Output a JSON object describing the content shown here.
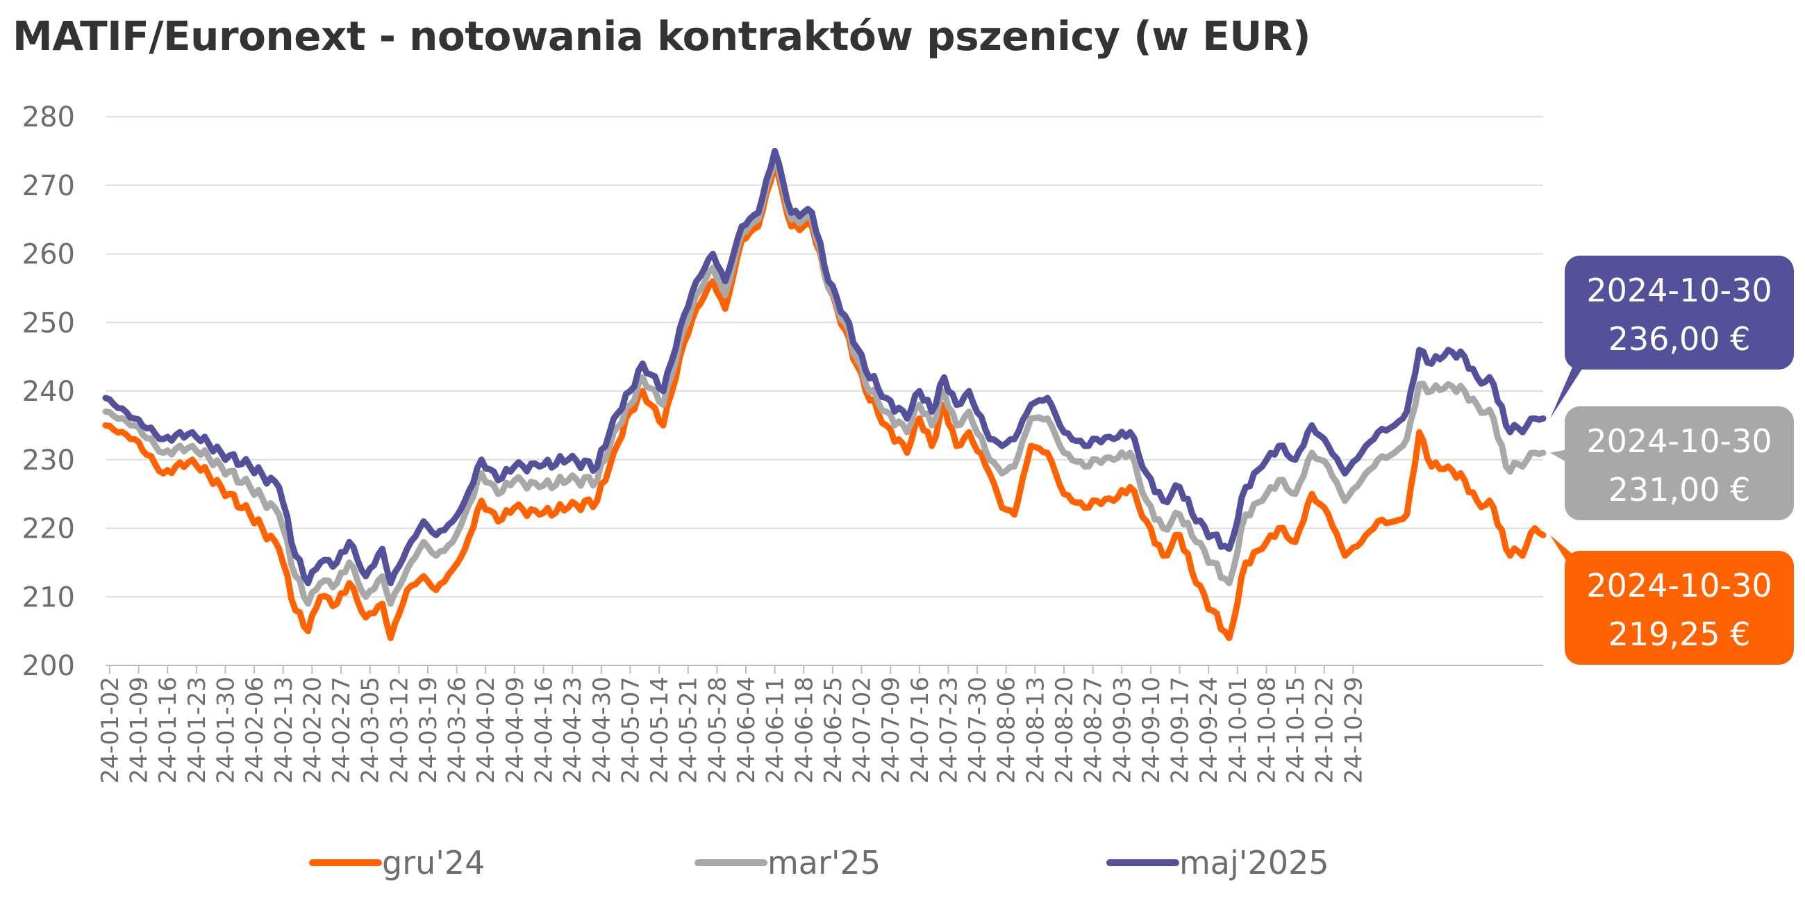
{
  "chart_data": {
    "type": "line",
    "title": "MATIF/Euronext - notowania kontraktów pszenicy (w EUR)",
    "xlabel": "",
    "ylabel": "",
    "ylim": [
      200,
      280
    ],
    "yticks": [
      "200",
      "210",
      "220",
      "230",
      "240",
      "250",
      "260",
      "270",
      "280"
    ],
    "x_start": "2024-01-02",
    "x_end": "2024-10-30",
    "xtick_labels": [
      "24-01-02",
      "24-01-09",
      "24-01-16",
      "24-01-23",
      "24-01-30",
      "24-02-06",
      "24-02-13",
      "24-02-20",
      "24-02-27",
      "24-03-05",
      "24-03-12",
      "24-03-19",
      "24-03-26",
      "24-04-02",
      "24-04-09",
      "24-04-16",
      "24-04-23",
      "24-04-30",
      "24-05-07",
      "24-05-14",
      "24-05-21",
      "24-05-28",
      "24-06-04",
      "24-06-11",
      "24-06-18",
      "24-06-25",
      "24-07-02",
      "24-07-09",
      "24-07-16",
      "24-07-23",
      "24-07-30",
      "24-08-06",
      "24-08-13",
      "24-08-20",
      "24-08-27",
      "24-09-03",
      "24-09-10",
      "24-09-17",
      "24-09-24",
      "24-10-01",
      "24-10-08",
      "24-10-15",
      "24-10-22",
      "24-10-29"
    ],
    "grid": true,
    "legend_position": "bottom",
    "series": [
      {
        "name": "gru'24",
        "color": "#ff6200",
        "values": [
          [
            0,
            235
          ],
          [
            7,
            233
          ],
          [
            14,
            228
          ],
          [
            21,
            230
          ],
          [
            28,
            226
          ],
          [
            35,
            222
          ],
          [
            42,
            217
          ],
          [
            46,
            208
          ],
          [
            49,
            205
          ],
          [
            52,
            210
          ],
          [
            56,
            209
          ],
          [
            59,
            212
          ],
          [
            63,
            207
          ],
          [
            67,
            209
          ],
          [
            69,
            204
          ],
          [
            73,
            211
          ],
          [
            77,
            213
          ],
          [
            80,
            211
          ],
          [
            84,
            214
          ],
          [
            87,
            217
          ],
          [
            91,
            224
          ],
          [
            95,
            221
          ],
          [
            99,
            223
          ],
          [
            105,
            222
          ],
          [
            112,
            223
          ],
          [
            119,
            224
          ],
          [
            123,
            231
          ],
          [
            127,
            237
          ],
          [
            130,
            240
          ],
          [
            135,
            235
          ],
          [
            140,
            247
          ],
          [
            143,
            252
          ],
          [
            147,
            256
          ],
          [
            150,
            252
          ],
          [
            154,
            262
          ],
          [
            158,
            264
          ],
          [
            162,
            273
          ],
          [
            166,
            264
          ],
          [
            171,
            264
          ],
          [
            175,
            255
          ],
          [
            179,
            249
          ],
          [
            184,
            240
          ],
          [
            189,
            235
          ],
          [
            194,
            231
          ],
          [
            197,
            236
          ],
          [
            200,
            232
          ],
          [
            203,
            238
          ],
          [
            206,
            232
          ],
          [
            209,
            234
          ],
          [
            214,
            228
          ],
          [
            217,
            223
          ],
          [
            220,
            222
          ],
          [
            224,
            232
          ],
          [
            228,
            231
          ],
          [
            232,
            225
          ],
          [
            237,
            223
          ],
          [
            240,
            224
          ],
          [
            244,
            224
          ],
          [
            248,
            226
          ],
          [
            252,
            221
          ],
          [
            256,
            216
          ],
          [
            260,
            219
          ],
          [
            264,
            212
          ],
          [
            268,
            208
          ],
          [
            272,
            204
          ],
          [
            276,
            215
          ],
          [
            280,
            217
          ],
          [
            284,
            220
          ],
          [
            288,
            218
          ],
          [
            292,
            225
          ],
          [
            296,
            222
          ],
          [
            300,
            216
          ],
          [
            304,
            218
          ],
          [
            308,
            221
          ],
          [
            312,
            221
          ],
          [
            315,
            222
          ],
          [
            318,
            234
          ],
          [
            321,
            229
          ],
          [
            325,
            229
          ],
          [
            329,
            227
          ],
          [
            332,
            224
          ],
          [
            336,
            223
          ],
          [
            339,
            217
          ],
          [
            343,
            216
          ],
          [
            346,
            220
          ],
          [
            348,
            219
          ]
        ]
      },
      {
        "name": "mar'25",
        "color": "#a8a8a8",
        "values": [
          [
            0,
            237
          ],
          [
            7,
            235
          ],
          [
            14,
            231
          ],
          [
            21,
            232
          ],
          [
            28,
            229
          ],
          [
            35,
            226
          ],
          [
            42,
            222
          ],
          [
            46,
            213
          ],
          [
            49,
            209
          ],
          [
            52,
            212
          ],
          [
            56,
            212
          ],
          [
            59,
            215
          ],
          [
            63,
            210
          ],
          [
            67,
            213
          ],
          [
            69,
            209
          ],
          [
            73,
            214
          ],
          [
            77,
            218
          ],
          [
            80,
            216
          ],
          [
            84,
            218
          ],
          [
            87,
            222
          ],
          [
            91,
            228
          ],
          [
            95,
            225
          ],
          [
            99,
            227
          ],
          [
            105,
            226
          ],
          [
            112,
            227
          ],
          [
            119,
            227
          ],
          [
            123,
            234
          ],
          [
            127,
            238
          ],
          [
            130,
            242
          ],
          [
            135,
            238
          ],
          [
            140,
            249
          ],
          [
            143,
            254
          ],
          [
            147,
            258
          ],
          [
            150,
            254
          ],
          [
            154,
            263
          ],
          [
            158,
            265
          ],
          [
            162,
            274
          ],
          [
            166,
            265
          ],
          [
            171,
            265
          ],
          [
            175,
            255
          ],
          [
            179,
            250
          ],
          [
            184,
            241
          ],
          [
            189,
            237
          ],
          [
            194,
            234
          ],
          [
            197,
            238
          ],
          [
            200,
            235
          ],
          [
            203,
            240
          ],
          [
            206,
            235
          ],
          [
            209,
            237
          ],
          [
            214,
            230
          ],
          [
            217,
            228
          ],
          [
            220,
            229
          ],
          [
            224,
            236
          ],
          [
            228,
            236
          ],
          [
            232,
            231
          ],
          [
            237,
            229
          ],
          [
            240,
            230
          ],
          [
            244,
            230
          ],
          [
            248,
            231
          ],
          [
            252,
            224
          ],
          [
            256,
            220
          ],
          [
            260,
            222
          ],
          [
            264,
            218
          ],
          [
            268,
            215
          ],
          [
            272,
            212
          ],
          [
            276,
            222
          ],
          [
            280,
            224
          ],
          [
            284,
            227
          ],
          [
            288,
            225
          ],
          [
            292,
            231
          ],
          [
            296,
            229
          ],
          [
            300,
            224
          ],
          [
            304,
            227
          ],
          [
            308,
            230
          ],
          [
            312,
            231
          ],
          [
            315,
            233
          ],
          [
            318,
            241
          ],
          [
            321,
            240
          ],
          [
            325,
            241
          ],
          [
            329,
            240
          ],
          [
            332,
            238
          ],
          [
            336,
            236
          ],
          [
            339,
            229
          ],
          [
            343,
            229
          ],
          [
            346,
            231
          ],
          [
            348,
            231
          ]
        ]
      },
      {
        "name": "maj'2025",
        "color": "#525199",
        "values": [
          [
            0,
            239
          ],
          [
            7,
            236
          ],
          [
            14,
            233
          ],
          [
            21,
            234
          ],
          [
            28,
            231
          ],
          [
            35,
            229
          ],
          [
            42,
            226
          ],
          [
            46,
            216
          ],
          [
            49,
            212
          ],
          [
            52,
            215
          ],
          [
            56,
            215
          ],
          [
            59,
            218
          ],
          [
            63,
            213
          ],
          [
            67,
            217
          ],
          [
            69,
            212
          ],
          [
            73,
            217
          ],
          [
            77,
            221
          ],
          [
            80,
            219
          ],
          [
            84,
            221
          ],
          [
            87,
            224
          ],
          [
            91,
            230
          ],
          [
            95,
            227
          ],
          [
            99,
            229
          ],
          [
            105,
            229
          ],
          [
            112,
            230
          ],
          [
            119,
            229
          ],
          [
            123,
            236
          ],
          [
            127,
            240
          ],
          [
            130,
            244
          ],
          [
            135,
            240
          ],
          [
            140,
            251
          ],
          [
            143,
            256
          ],
          [
            147,
            260
          ],
          [
            150,
            256
          ],
          [
            154,
            264
          ],
          [
            158,
            266
          ],
          [
            162,
            275
          ],
          [
            166,
            266
          ],
          [
            171,
            266
          ],
          [
            175,
            256
          ],
          [
            179,
            251
          ],
          [
            184,
            243
          ],
          [
            189,
            239
          ],
          [
            194,
            236
          ],
          [
            197,
            240
          ],
          [
            200,
            237
          ],
          [
            203,
            242
          ],
          [
            206,
            238
          ],
          [
            209,
            240
          ],
          [
            214,
            233
          ],
          [
            217,
            232
          ],
          [
            220,
            233
          ],
          [
            224,
            238
          ],
          [
            228,
            239
          ],
          [
            232,
            234
          ],
          [
            237,
            232
          ],
          [
            240,
            233
          ],
          [
            244,
            233
          ],
          [
            248,
            234
          ],
          [
            252,
            228
          ],
          [
            256,
            224
          ],
          [
            260,
            226
          ],
          [
            264,
            221
          ],
          [
            268,
            219
          ],
          [
            272,
            217
          ],
          [
            276,
            226
          ],
          [
            280,
            229
          ],
          [
            284,
            232
          ],
          [
            288,
            230
          ],
          [
            292,
            235
          ],
          [
            296,
            232
          ],
          [
            300,
            228
          ],
          [
            304,
            231
          ],
          [
            308,
            234
          ],
          [
            312,
            235
          ],
          [
            315,
            237
          ],
          [
            318,
            246
          ],
          [
            321,
            244
          ],
          [
            325,
            246
          ],
          [
            329,
            245
          ],
          [
            332,
            242
          ],
          [
            336,
            241
          ],
          [
            339,
            235
          ],
          [
            343,
            234
          ],
          [
            346,
            236
          ],
          [
            348,
            236
          ]
        ]
      }
    ],
    "annotations": [
      {
        "series": "maj'2025",
        "date": "2024-10-30",
        "value": "236,00 €",
        "color": "#525199"
      },
      {
        "series": "mar'25",
        "date": "2024-10-30",
        "value": "231,00 €",
        "color": "#a8a8a8"
      },
      {
        "series": "gru'24",
        "date": "2024-10-30",
        "value": "219,25 €",
        "color": "#ff6200"
      }
    ]
  }
}
